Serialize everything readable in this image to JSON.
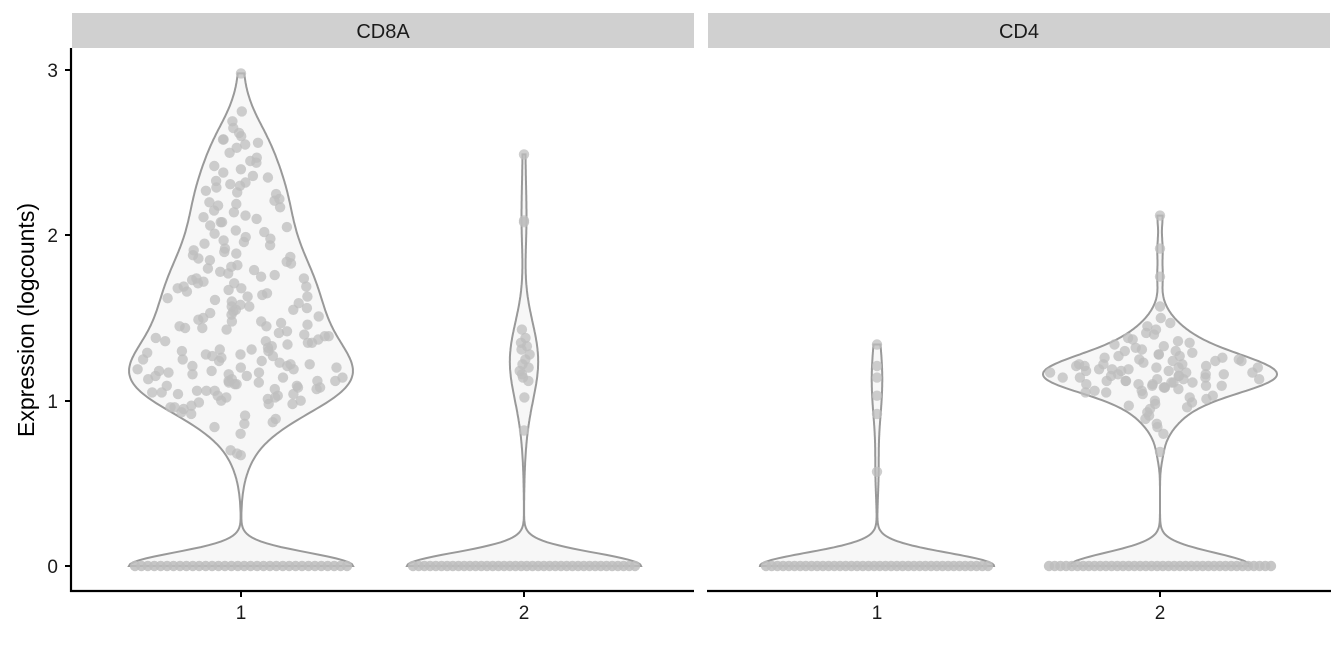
{
  "chart_data": {
    "type": "violin",
    "ylabel": "Expression (logcounts)",
    "y_ticks": [
      "0",
      "1",
      "2",
      "3"
    ],
    "ylim": [
      -0.15,
      3.1
    ],
    "grid": false,
    "colors": {
      "violin_fill": "#f7f7f7",
      "violin_stroke": "#999999",
      "point": "#bdbdbd",
      "strip": "#d0d0d0"
    },
    "panels": [
      {
        "title": "CD8A",
        "categories": [
          "1",
          "2"
        ],
        "groups": [
          {
            "category": "1",
            "zeros": 34,
            "values": [
              2.98,
              2.75,
              2.69,
              2.65,
              2.62,
              2.6,
              2.58,
              2.56,
              2.55,
              2.53,
              2.5,
              2.47,
              2.45,
              2.42,
              2.4,
              2.38,
              2.36,
              2.33,
              2.32,
              2.3,
              2.29,
              2.27,
              2.25,
              2.22,
              2.2,
              2.19,
              2.17,
              2.15,
              2.14,
              2.12,
              2.1,
              2.08,
              2.06,
              2.05,
              2.03,
              2.01,
              1.99,
              1.97,
              1.95,
              1.94,
              1.92,
              1.9,
              1.88,
              1.87,
              1.85,
              1.84,
              1.82,
              1.8,
              1.79,
              1.77,
              1.76,
              1.75,
              1.73,
              1.72,
              1.71,
              1.69,
              1.68,
              1.67,
              1.65,
              1.64,
              1.63,
              1.61,
              1.6,
              1.58,
              1.57,
              1.55,
              1.54,
              1.52,
              1.5,
              1.49,
              1.47,
              1.45,
              1.44,
              1.42,
              1.4,
              1.39,
              1.37,
              1.35,
              1.34,
              1.32,
              1.31,
              1.29,
              1.28,
              1.27,
              1.25,
              1.24,
              1.23,
              1.22,
              1.21,
              1.2,
              1.19,
              1.18,
              1.17,
              1.16,
              1.15,
              1.14,
              1.13,
              1.12,
              1.11,
              1.1,
              1.09,
              1.08,
              1.07,
              1.06,
              1.05,
              1.04,
              1.03,
              1.02,
              1.01,
              1.0,
              0.99,
              0.98,
              0.97,
              0.96,
              0.95,
              0.93,
              0.91,
              0.89,
              0.87,
              0.84,
              0.8,
              0.7,
              0.68,
              0.67,
              2.58,
              2.31,
              2.18,
              2.08,
              1.98,
              1.86,
              1.74,
              1.62,
              1.48,
              1.36,
              1.26,
              1.18,
              1.1,
              1.02,
              0.96,
              2.44,
              2.26,
              2.02,
              1.78,
              1.56,
              1.41,
              1.3,
              1.16,
              1.06,
              0.92,
              2.35,
              2.11,
              1.91,
              1.71,
              1.53,
              1.38,
              1.24,
              1.12,
              1.0,
              0.86,
              2.21,
              1.96,
              1.81,
              1.66,
              1.46,
              1.33,
              1.2,
              1.08,
              0.98,
              1.89,
              1.69,
              1.59,
              1.43,
              1.28,
              1.14,
              1.04,
              1.83,
              1.63,
              1.51,
              1.36,
              1.22,
              1.11,
              1.05,
              1.74,
              1.57,
              1.45,
              1.31,
              1.19,
              1.09,
              1.68,
              1.48,
              1.35,
              1.21,
              1.13,
              1.03,
              1.55,
              1.39,
              1.27,
              1.17,
              1.07,
              1.44,
              1.3,
              1.15,
              1.06,
              1.25,
              1.12
            ]
          },
          {
            "category": "2",
            "zeros": 40,
            "values": [
              2.49,
              2.09,
              2.08,
              1.43,
              1.38,
              1.35,
              1.33,
              1.31,
              1.28,
              1.25,
              1.22,
              1.2,
              1.18,
              1.16,
              1.14,
              1.12,
              1.02,
              0.82
            ]
          }
        ]
      },
      {
        "title": "CD4",
        "categories": [
          "1",
          "2"
        ],
        "groups": [
          {
            "category": "1",
            "zeros": 40,
            "values": [
              1.34,
              1.21,
              1.14,
              1.03,
              0.92,
              0.57
            ]
          },
          {
            "category": "2",
            "zeros": 40,
            "values": [
              2.12,
              1.92,
              1.75,
              1.57,
              1.5,
              1.47,
              1.45,
              1.43,
              1.41,
              1.4,
              1.38,
              1.37,
              1.36,
              1.35,
              1.34,
              1.33,
              1.32,
              1.31,
              1.3,
              1.29,
              1.28,
              1.27,
              1.27,
              1.26,
              1.25,
              1.25,
              1.24,
              1.24,
              1.23,
              1.22,
              1.22,
              1.21,
              1.21,
              1.2,
              1.2,
              1.19,
              1.19,
              1.18,
              1.18,
              1.17,
              1.17,
              1.16,
              1.16,
              1.15,
              1.15,
              1.14,
              1.14,
              1.13,
              1.13,
              1.12,
              1.12,
              1.11,
              1.11,
              1.1,
              1.1,
              1.09,
              1.09,
              1.08,
              1.08,
              1.07,
              1.06,
              1.06,
              1.05,
              1.04,
              1.03,
              1.02,
              1.01,
              1.0,
              0.99,
              0.98,
              0.97,
              0.96,
              0.95,
              0.93,
              0.91,
              0.89,
              0.86,
              0.84,
              0.8,
              0.69,
              1.22,
              1.18,
              1.14,
              1.1,
              1.26,
              1.2,
              1.16,
              1.12,
              1.08,
              1.24,
              1.19,
              1.15,
              1.11,
              1.28,
              1.21,
              1.17,
              1.13,
              1.09,
              1.05,
              1.3
            ]
          }
        ]
      }
    ]
  }
}
